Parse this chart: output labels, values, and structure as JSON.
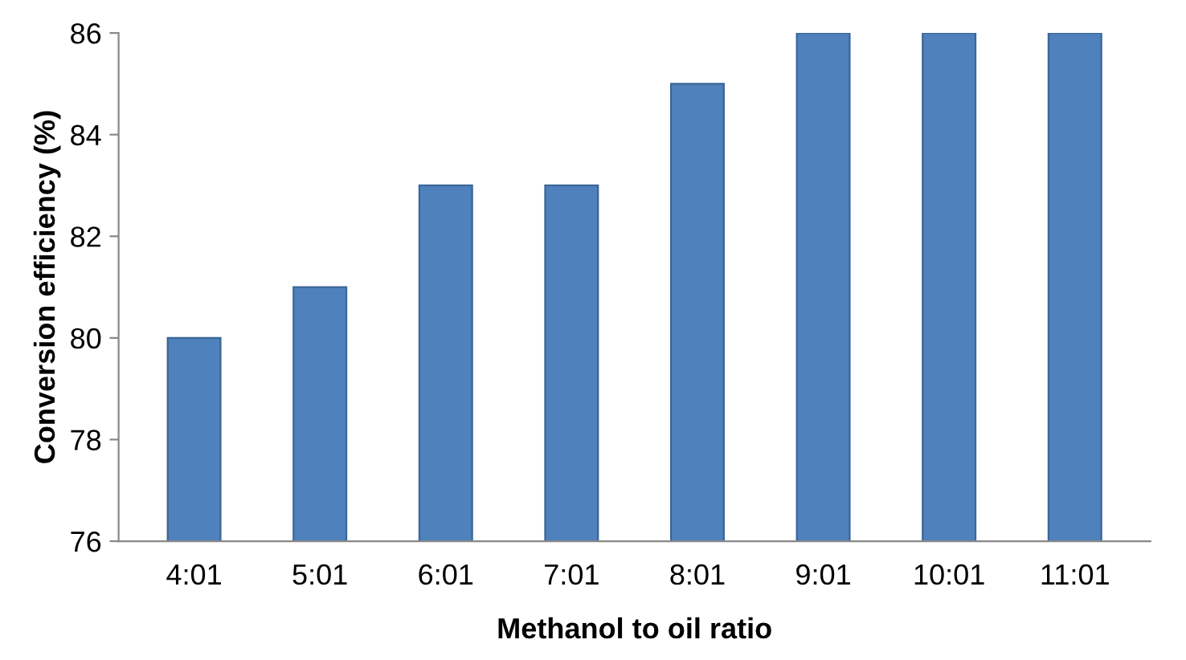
{
  "chart_data": {
    "type": "bar",
    "xlabel": "Methanol to oil ratio",
    "ylabel": "Conversion efficiency (%)",
    "categories": [
      "4:01",
      "5:01",
      "6:01",
      "7:01",
      "8:01",
      "9:01",
      "10:01",
      "11:01"
    ],
    "values": [
      80,
      81,
      83,
      83,
      85,
      86,
      86,
      86
    ],
    "color": "#4f81bd",
    "ylim": [
      76,
      86
    ],
    "yticks": [
      76,
      78,
      80,
      82,
      84,
      86
    ],
    "grid": false,
    "legend": false
  }
}
